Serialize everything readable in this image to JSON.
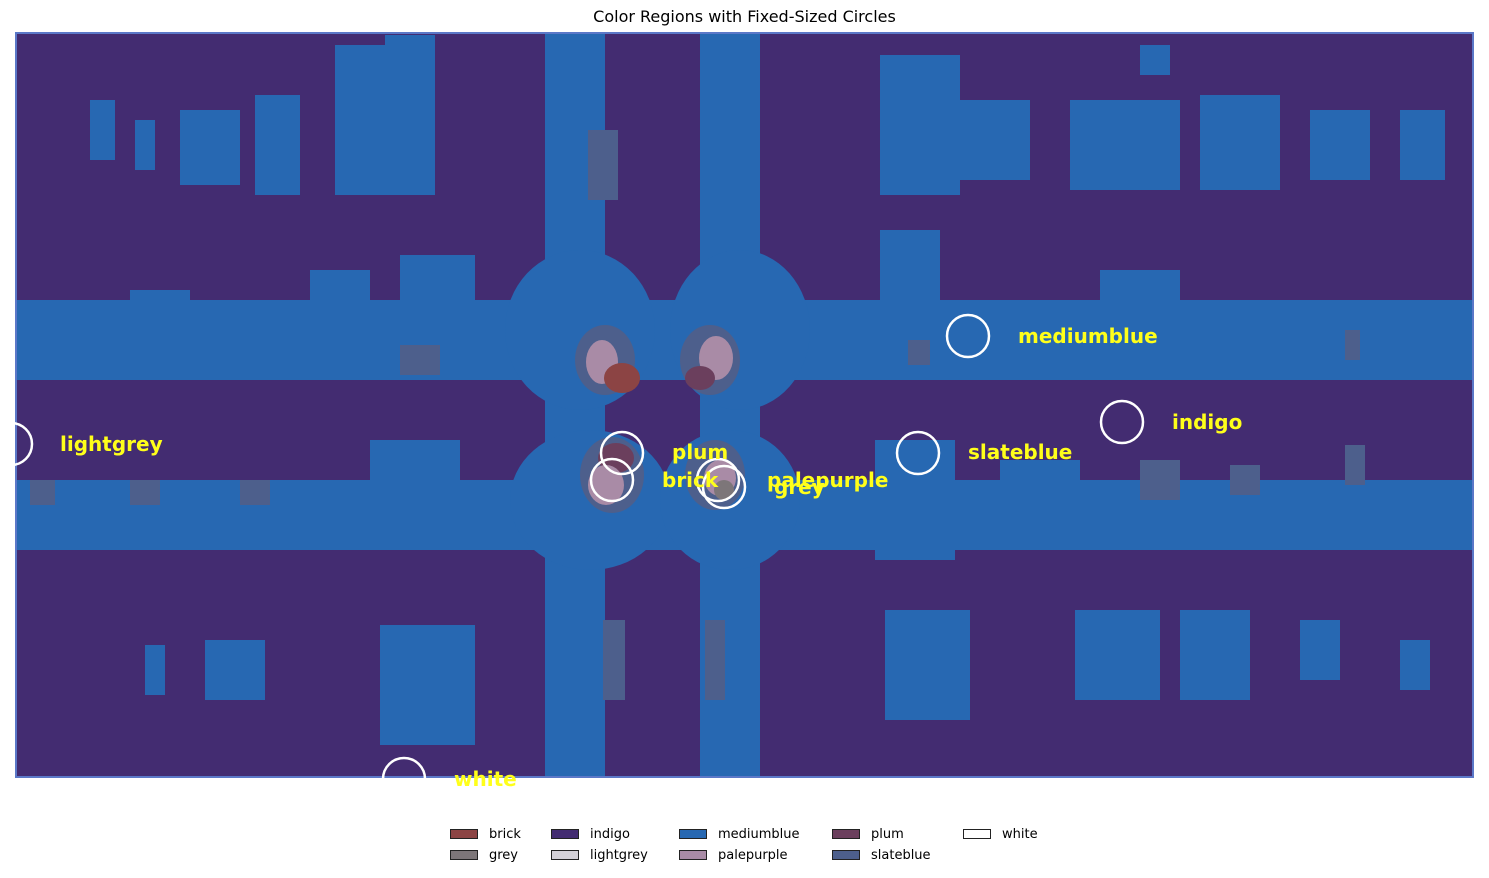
{
  "chart_data": {
    "type": "heatmap",
    "title": "Color Regions with Fixed-Sized Circles",
    "colors": {
      "brick": "#8c4444",
      "grey": "#7d7679",
      "indigo": "#432c71",
      "lightgrey": "#d4d1d8",
      "mediumblue": "#2768b2",
      "palepurple": "#a98ba6",
      "plum": "#6b3f5d",
      "slateblue": "#4d5f8c",
      "white": "#ffffff"
    },
    "annotations": [
      {
        "label": "mediumblue"
      },
      {
        "label": "indigo"
      },
      {
        "label": "lightgrey"
      },
      {
        "label": "slateblue"
      },
      {
        "label": "plum"
      },
      {
        "label": "brick"
      },
      {
        "label": "palepurple"
      },
      {
        "label": "grey"
      },
      {
        "label": "white"
      }
    ],
    "label_color": "#ffff1a",
    "legend": {
      "position": "bottom",
      "columns": [
        [
          "brick",
          "grey"
        ],
        [
          "indigo",
          "lightgrey"
        ],
        [
          "mediumblue",
          "palepurple"
        ],
        [
          "plum",
          "slateblue"
        ],
        [
          "white"
        ]
      ]
    },
    "axes": "off"
  }
}
